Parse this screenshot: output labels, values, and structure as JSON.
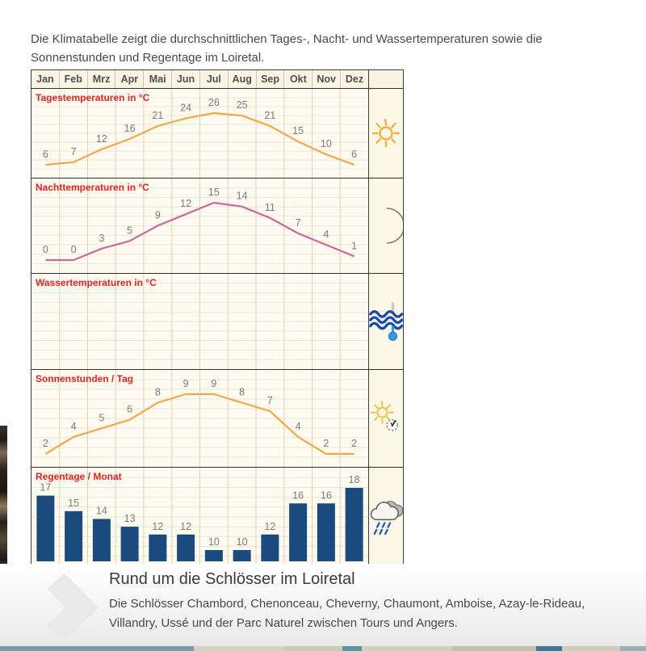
{
  "intro": {
    "text": "Die Klimatabelle zeigt die durchschnittlichen Tages-, Nacht- und Wassertemperaturen sowie die Sonnenstunden und Regentage im Loiretal."
  },
  "chart_data": {
    "type": "table",
    "title": "Klimatabelle Loiretal",
    "grid": true,
    "months": [
      "Jan",
      "Feb",
      "Mrz",
      "Apr",
      "Mai",
      "Jun",
      "Jul",
      "Aug",
      "Sep",
      "Okt",
      "Nov",
      "Dez"
    ],
    "label_color": "#e02424",
    "value_label_color": "#7a7a7a",
    "rows": [
      {
        "label": "Tagestemperaturen in °C",
        "type": "line",
        "color": "#f0a848",
        "icon": "sun-icon",
        "values": [
          6,
          7,
          12,
          16,
          21,
          24,
          26,
          25,
          21,
          15,
          10,
          6
        ]
      },
      {
        "label": "Nachttemperaturen in °C",
        "type": "line",
        "color": "#c9699f",
        "icon": "moon-icon",
        "values": [
          0,
          0,
          3,
          5,
          9,
          12,
          15,
          14,
          11,
          7,
          4,
          1
        ]
      },
      {
        "label": "Wassertemperaturen in °C",
        "type": "empty",
        "color": "#1a4a7e",
        "icon": "water-thermometer-icon",
        "values": []
      },
      {
        "label": "Sonnenstunden / Tag",
        "type": "line",
        "color": "#f0a848",
        "icon": "sun-clock-icon",
        "values": [
          2,
          4,
          5,
          6,
          8,
          9,
          9,
          8,
          7,
          4,
          2,
          2
        ]
      },
      {
        "label": "Regentage / Monat",
        "type": "bar",
        "color": "#1a4a7e",
        "icon": "rain-cloud-icon",
        "values": [
          17,
          15,
          14,
          13,
          12,
          12,
          10,
          10,
          12,
          16,
          16,
          18
        ]
      }
    ]
  },
  "teaser": {
    "title": "Rund um die Schlösser im Loiretal",
    "text": "Die Schlösser Chambord, Chenonceau, Cheverny, Chaumont, Amboise, Azay-le-Rideau, Villandry, Ussé und der Parc Naturel zwischen Tours und Angers."
  }
}
